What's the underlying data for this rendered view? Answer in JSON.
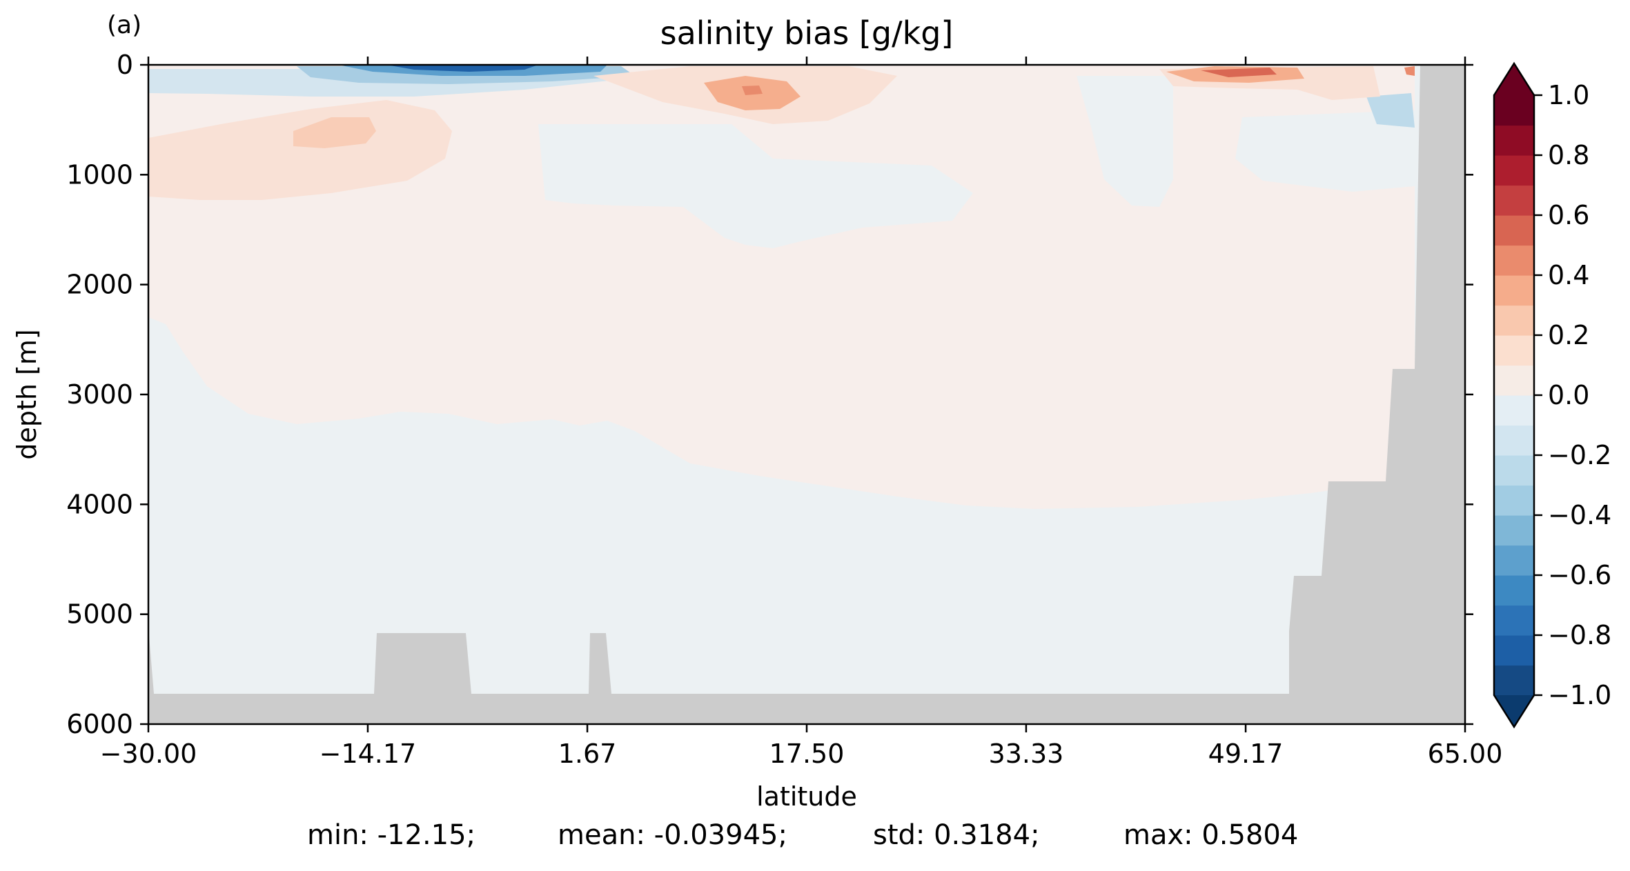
{
  "panel_label": "(a)",
  "chart_data": {
    "type": "heatmap",
    "title": "salinity bias [g/kg]",
    "xlabel": "latitude",
    "ylabel": "depth [m]",
    "xlim": [
      -30.0,
      65.0
    ],
    "ylim": [
      6000,
      0
    ],
    "x_ticks": [
      -30.0,
      -14.17,
      1.67,
      17.5,
      33.33,
      49.17,
      65.0
    ],
    "x_tick_labels": [
      "−30.00",
      "−14.17",
      "1.67",
      "17.50",
      "33.33",
      "49.17",
      "65.00"
    ],
    "y_ticks": [
      0,
      1000,
      2000,
      3000,
      4000,
      5000,
      6000
    ],
    "y_tick_labels": [
      "0",
      "1000",
      "2000",
      "3000",
      "4000",
      "5000",
      "6000"
    ],
    "colorbar": {
      "vmin": -1.0,
      "vmax": 1.0,
      "step": 0.1,
      "extend": "both",
      "colormap": "RdBu_r",
      "ticks": [
        1.0,
        0.8,
        0.6,
        0.4,
        0.2,
        0.0,
        -0.2,
        -0.4,
        -0.6,
        -0.8,
        -1.0
      ],
      "tick_labels": [
        "1.0",
        "0.8",
        "0.6",
        "0.4",
        "0.2",
        "0.0",
        "−0.2",
        "−0.4",
        "−0.6",
        "−0.8",
        "−1.0"
      ],
      "colors": [
        "#154a84",
        "#1d5fa6",
        "#2c73b7",
        "#3d89c2",
        "#5da0cd",
        "#7fb7d7",
        "#a1cce3",
        "#bbdaea",
        "#d2e5f0",
        "#e4eef4",
        "#f6ece6",
        "#fbdfcf",
        "#f9c8ae",
        "#f5ac8b",
        "#ea8b6d",
        "#d86552",
        "#c43f40",
        "#ad1e2e",
        "#8f0c25",
        "#6a0020"
      ]
    },
    "land_color": "#cccccc",
    "field_regions": [
      {
        "desc": "surface fresh core",
        "lat": [
          -8,
          -4
        ],
        "depth": [
          0,
          60
        ],
        "value": -0.95
      },
      {
        "desc": "subsurface salty lens",
        "lat": [
          -12,
          -8
        ],
        "depth": [
          400,
          800
        ],
        "value": 0.25
      },
      {
        "desc": "salty core",
        "lat": [
          14,
          16
        ],
        "depth": [
          150,
          300
        ],
        "value": 0.45
      },
      {
        "desc": "salty core",
        "lat": [
          46,
          50
        ],
        "depth": [
          30,
          130
        ],
        "value": 0.55
      },
      {
        "desc": "deep interior",
        "lat": [
          -30,
          65
        ],
        "depth": [
          3500,
          5700
        ],
        "value": -0.05
      },
      {
        "desc": "intermediate water",
        "lat": [
          -30,
          60
        ],
        "depth": [
          1200,
          3200
        ],
        "value": 0.05
      }
    ]
  },
  "stats": {
    "min": "min: -12.15;",
    "mean": "mean: -0.03945;",
    "std": "std: 0.3184;",
    "max": "max: 0.5804"
  }
}
